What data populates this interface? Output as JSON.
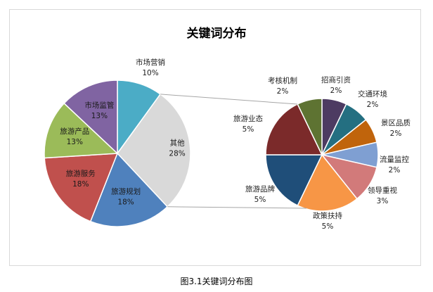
{
  "chart_data": {
    "type": "pie-of-pie",
    "title": "关键词分布",
    "main_pie": [
      {
        "name": "市场营销",
        "value": 10,
        "label": "10%",
        "color": "#4bacc6"
      },
      {
        "name": "其他",
        "value": 28,
        "label": "28%",
        "color": "#d9d9d9"
      },
      {
        "name": "旅游规划",
        "value": 18,
        "label": "18%",
        "color": "#4f81bd"
      },
      {
        "name": "旅游服务",
        "value": 18,
        "label": "18%",
        "color": "#c0504d"
      },
      {
        "name": "旅游产品",
        "value": 13,
        "label": "13%",
        "color": "#9bbb59"
      },
      {
        "name": "市场监管",
        "value": 13,
        "label": "13%",
        "color": "#8064a2"
      }
    ],
    "secondary_pie": [
      {
        "name": "招商引资",
        "value": 2,
        "label": "2%",
        "color": "#4d3b62"
      },
      {
        "name": "交通环境",
        "value": 2,
        "label": "2%",
        "color": "#246f81"
      },
      {
        "name": "景区品质",
        "value": 2,
        "label": "2%",
        "color": "#c0640c"
      },
      {
        "name": "流量监控",
        "value": 2,
        "label": "2%",
        "color": "#7f9fd2"
      },
      {
        "name": "领导重视",
        "value": 3,
        "label": "3%",
        "color": "#d27a7a"
      },
      {
        "name": "政策扶持",
        "value": 5,
        "label": "5%",
        "color": "#f79646"
      },
      {
        "name": "旅游品牌",
        "value": 5,
        "label": "5%",
        "color": "#1f4e79"
      },
      {
        "name": "旅游业态",
        "value": 5,
        "label": "5%",
        "color": "#7b2a2a"
      },
      {
        "name": "考核机制",
        "value": 2,
        "label": "2%",
        "color": "#5e7332"
      }
    ]
  },
  "caption": "图3.1关键词分布图"
}
